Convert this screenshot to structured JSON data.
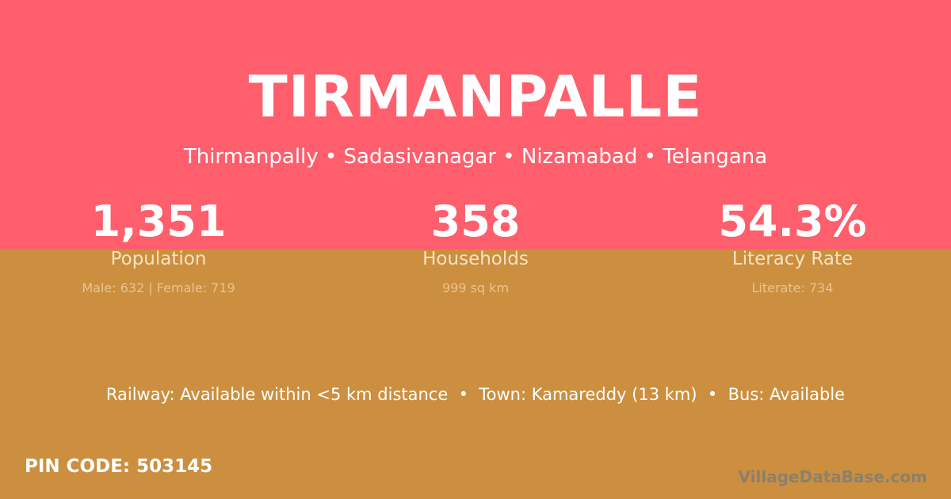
{
  "village": "TIRMANPALLE",
  "subtitle": "Thirmanpally • Sadasivanagar • Nizamabad • Telangana",
  "stats": [
    {
      "value": "1,351",
      "label": "Population",
      "detail": "Male: 632 | Female: 719"
    },
    {
      "value": "358",
      "label": "Households",
      "detail": "999 sq km"
    },
    {
      "value": "54.3%",
      "label": "Literacy Rate",
      "detail": "Literate: 734"
    }
  ],
  "facts": "Railway: Available within <5 km distance  •  Town: Kamareddy (13 km)  •  Bus: Available",
  "pin": "PIN CODE: 503145",
  "watermark": "VillageDataBase.com",
  "colors": {
    "top": "#ff5e6c",
    "bottom": "#cb8f3f"
  }
}
